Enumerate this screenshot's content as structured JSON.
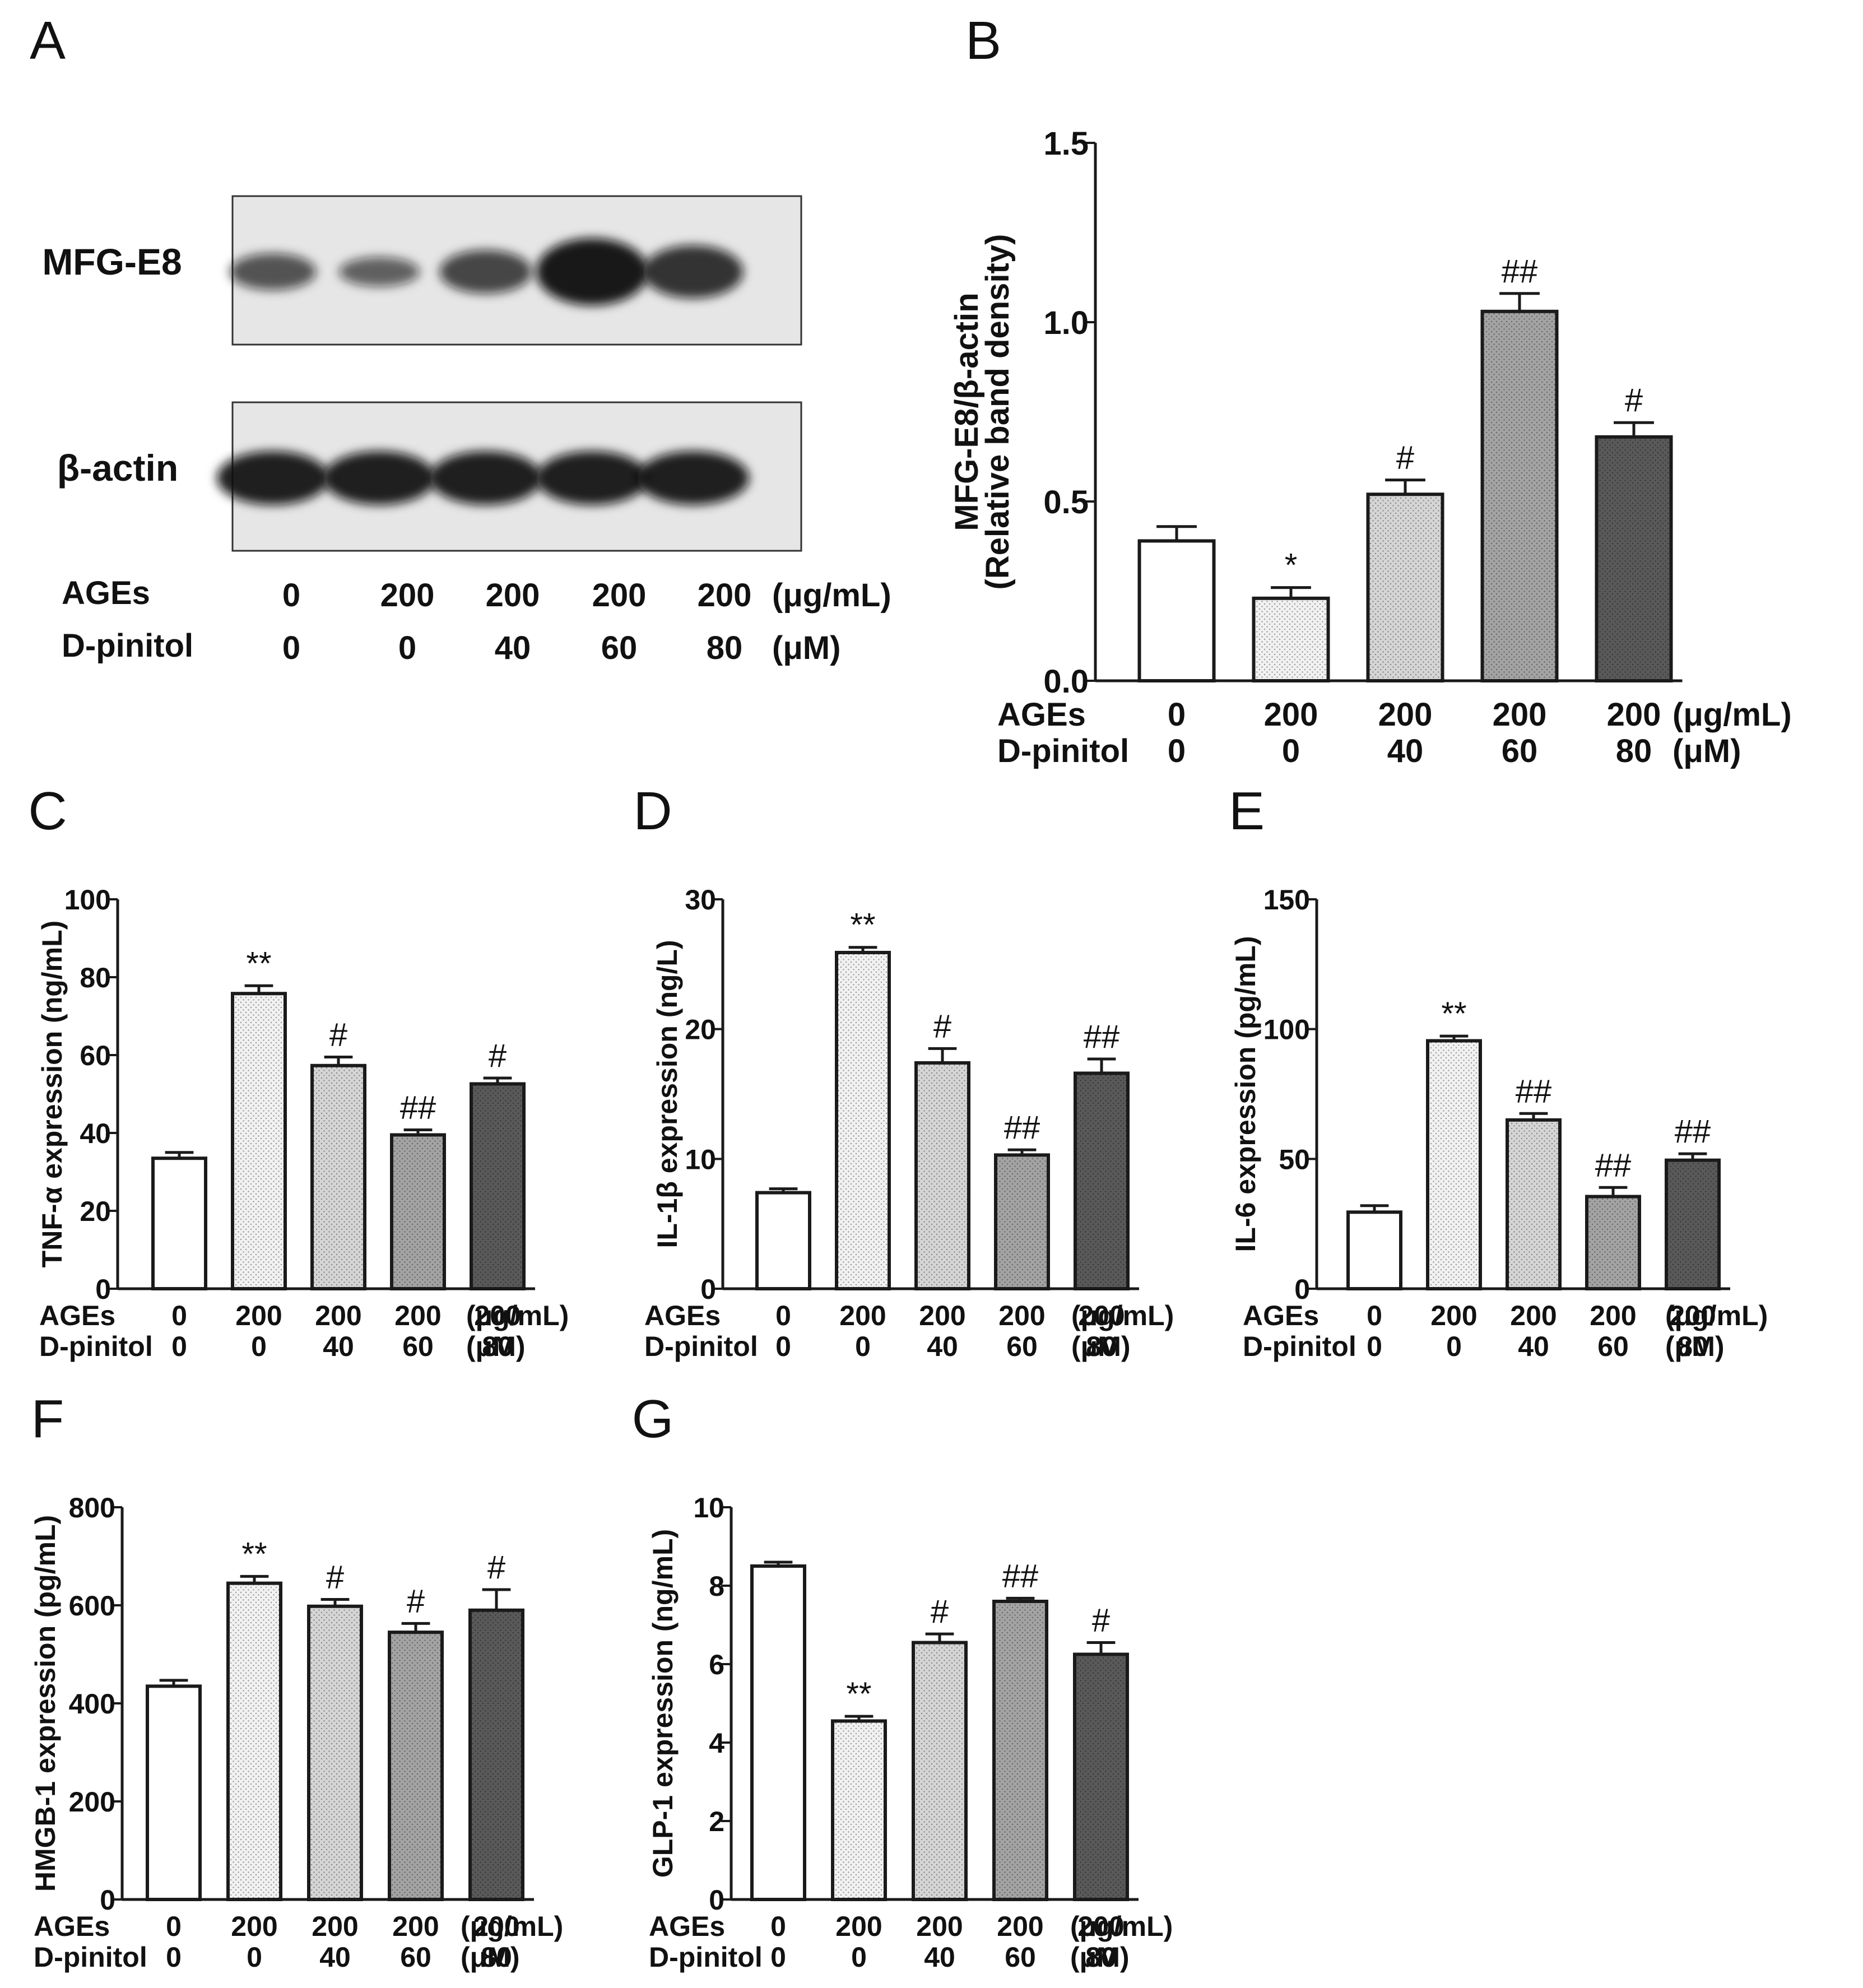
{
  "figure": {
    "panel_letters": [
      "A",
      "B",
      "C",
      "D",
      "E",
      "F",
      "G"
    ],
    "condition_labels": {
      "ages": "AGEs",
      "pinitol": "D-pinitol",
      "ages_unit": "(μg/mL)",
      "pinitol_unit": "(μM)",
      "ages_values": [
        "0",
        "200",
        "200",
        "200",
        "200"
      ],
      "pinitol_values": [
        "0",
        "0",
        "40",
        "60",
        "80"
      ]
    }
  },
  "western_blot": {
    "panel": "A",
    "bands": [
      {
        "name": "MFG-E8",
        "relative_intensity": [
          0.35,
          0.2,
          0.5,
          1.0,
          0.7
        ]
      },
      {
        "name": "β-actin",
        "relative_intensity": [
          1.0,
          1.0,
          1.0,
          1.0,
          1.0
        ]
      }
    ]
  },
  "colors": {
    "bar_fills": [
      "#ffffff",
      "#f1f1f1",
      "#d5d5d5",
      "#a3a3a3",
      "#595959"
    ],
    "outline": "#1a1a1a"
  },
  "chart_data": [
    {
      "panel": "B",
      "type": "bar",
      "categories": [
        "0/0",
        "200/0",
        "200/40",
        "200/60",
        "200/80"
      ],
      "values": [
        0.39,
        0.23,
        0.52,
        1.03,
        0.68
      ],
      "errors": [
        0.04,
        0.03,
        0.04,
        0.05,
        0.04
      ],
      "annotations": [
        "",
        "*",
        "#",
        "##",
        "#"
      ],
      "ylabel_line1": "MFG-E8/β-actin",
      "ylabel_line2": "(Relative band density)",
      "ylim": [
        0,
        1.5
      ],
      "yticks": [
        "0.0",
        "0.5",
        "1.0",
        "1.5"
      ],
      "grid": false
    },
    {
      "panel": "C",
      "type": "bar",
      "categories": [
        "0/0",
        "200/0",
        "200/40",
        "200/60",
        "200/80"
      ],
      "values": [
        33.5,
        75.8,
        57.3,
        39.5,
        52.6
      ],
      "errors": [
        1.5,
        2.0,
        2.2,
        1.3,
        1.5
      ],
      "annotations": [
        "",
        "**",
        "#",
        "##",
        "#"
      ],
      "ylabel_line1": "TNF-α expression (ng/mL)",
      "ylim": [
        0,
        100
      ],
      "yticks": [
        "0",
        "20",
        "40",
        "60",
        "80",
        "100"
      ],
      "grid": false
    },
    {
      "panel": "D",
      "type": "bar",
      "categories": [
        "0/0",
        "200/0",
        "200/40",
        "200/60",
        "200/80"
      ],
      "values": [
        7.4,
        25.9,
        17.4,
        10.3,
        16.6
      ],
      "errors": [
        0.3,
        0.4,
        1.1,
        0.4,
        1.1
      ],
      "annotations": [
        "",
        "**",
        "#",
        "##",
        "##"
      ],
      "ylabel_line1": "IL-1β expression (ng/L)",
      "ylim": [
        0,
        30
      ],
      "yticks": [
        "0",
        "10",
        "20",
        "30"
      ],
      "grid": false
    },
    {
      "panel": "E",
      "type": "bar",
      "categories": [
        "0/0",
        "200/0",
        "200/40",
        "200/60",
        "200/80"
      ],
      "values": [
        29.5,
        95.5,
        65.0,
        35.5,
        49.5
      ],
      "errors": [
        2.5,
        1.8,
        2.5,
        3.5,
        2.5
      ],
      "annotations": [
        "",
        "**",
        "##",
        "##",
        "##"
      ],
      "ylabel_line1": "IL-6 expression (pg/mL)",
      "ylim": [
        0,
        150
      ],
      "yticks": [
        "0",
        "50",
        "100",
        "150"
      ],
      "grid": false
    },
    {
      "panel": "F",
      "type": "bar",
      "categories": [
        "0/0",
        "200/0",
        "200/40",
        "200/60",
        "200/80"
      ],
      "values": [
        435,
        645,
        598,
        545,
        590
      ],
      "errors": [
        12,
        14,
        14,
        18,
        42
      ],
      "annotations": [
        "",
        "**",
        "#",
        "#",
        "#"
      ],
      "ylabel_line1": "HMGB-1 expression (pg/mL)",
      "ylim": [
        0,
        800
      ],
      "yticks": [
        "0",
        "200",
        "400",
        "600",
        "800"
      ],
      "grid": false
    },
    {
      "panel": "G",
      "type": "bar",
      "categories": [
        "0/0",
        "200/0",
        "200/40",
        "200/60",
        "200/80"
      ],
      "values": [
        8.5,
        4.55,
        6.55,
        7.6,
        6.25
      ],
      "errors": [
        0.1,
        0.12,
        0.22,
        0.08,
        0.3
      ],
      "annotations": [
        "",
        "**",
        "#",
        "##",
        "#"
      ],
      "ylabel_line1": "GLP-1 expression (ng/mL)",
      "ylim": [
        0,
        10
      ],
      "yticks": [
        "0",
        "2",
        "4",
        "6",
        "8",
        "10"
      ],
      "grid": false
    }
  ]
}
